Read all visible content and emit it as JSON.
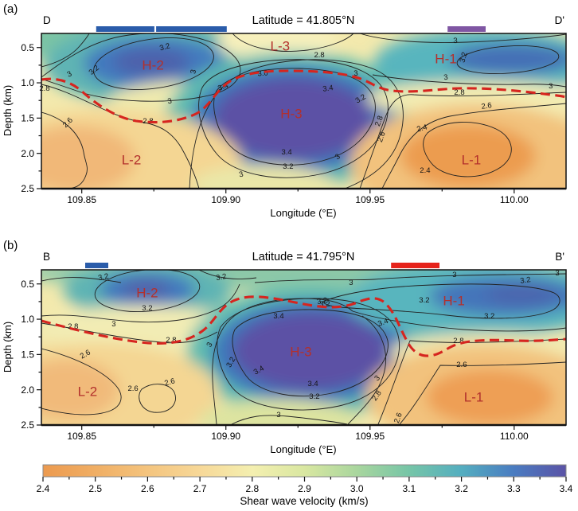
{
  "chart_data": {
    "type": "heatmap",
    "axes": {
      "xlabel": "Longitude (°E)",
      "ylabel": "Depth (km)",
      "x_ticks": [
        109.85,
        109.9,
        109.95,
        110.0
      ],
      "x_tick_labels": [
        "109.85",
        "109.90",
        "109.95",
        "110.00"
      ],
      "x_minor_ticks": [
        109.875,
        109.925,
        109.975
      ],
      "y_ticks": [
        0.5,
        1.0,
        1.5,
        2.0,
        2.5
      ],
      "y_tick_labels": [
        "0.5",
        "1.0",
        "1.5",
        "2.0",
        "2.5"
      ],
      "y_minor_ticks": [
        0.75,
        1.25,
        1.75,
        2.25
      ],
      "lon_range": [
        109.836,
        110.018
      ],
      "depth_range": [
        0.3,
        2.5
      ]
    },
    "contour_levels": [
      2.4,
      2.6,
      2.8,
      3.0,
      3.2,
      3.4
    ],
    "colors": {
      "dashed_line": "#D6251F",
      "anomaly_label": "#B3302C",
      "section_bar_blue": "#2A5CAA",
      "section_bar_purple": "#7F56A3",
      "section_bar_red": "#E6231B"
    },
    "panels": [
      {
        "tag": "(a)",
        "corner_left": "D",
        "corner_right": "D'",
        "title": "Latitude = 41.805°N",
        "latitude": 41.805,
        "top_bars": [
          {
            "color": "#2A5CAA",
            "lon_start": 109.855,
            "lon_end": 109.8752
          },
          {
            "color": "#2A5CAA",
            "lon_start": 109.8758,
            "lon_end": 109.9003
          },
          {
            "color": "#7F56A3",
            "lon_start": 109.9769,
            "lon_end": 109.9901
          }
        ],
        "anomaly_labels": [
          {
            "text": "H-2",
            "lon": 109.8747,
            "depth": 0.751
          },
          {
            "text": "L-3",
            "lon": 109.9188,
            "depth": 0.48
          },
          {
            "text": "H-1",
            "lon": 109.9763,
            "depth": 0.661
          },
          {
            "text": "H-3",
            "lon": 109.9227,
            "depth": 1.439
          },
          {
            "text": "L-2",
            "lon": 109.8672,
            "depth": 2.094
          },
          {
            "text": "L-1",
            "lon": 109.9851,
            "depth": 2.094
          }
        ],
        "contour_labels": [
          [
            109.8788,
            0.492,
            "3.2",
            -15
          ],
          [
            109.8542,
            0.819,
            "3.2",
            -40
          ],
          [
            109.8457,
            0.875,
            "3",
            -25
          ],
          [
            109.8371,
            1.078,
            "2.8",
            0
          ],
          [
            109.8887,
            0.841,
            "3",
            -78
          ],
          [
            109.8805,
            1.259,
            "3",
            -10
          ],
          [
            109.8451,
            1.563,
            "2.6",
            -45
          ],
          [
            109.873,
            1.541,
            "2.8",
            0
          ],
          [
            109.899,
            1.056,
            "3.4",
            -20
          ],
          [
            109.9354,
            1.078,
            "3.4",
            -8
          ],
          [
            109.9467,
            1.225,
            "3.2",
            -30
          ],
          [
            109.9211,
            1.981,
            "3.4",
            0
          ],
          [
            109.9216,
            2.184,
            "3.2",
            0
          ],
          [
            109.9387,
            2.048,
            "3",
            -35
          ],
          [
            109.9053,
            2.297,
            "3",
            -12
          ],
          [
            109.9531,
            1.541,
            "2.8",
            -70
          ],
          [
            109.9539,
            1.767,
            "2.6",
            -70
          ],
          [
            109.9128,
            0.864,
            "3.0",
            -5
          ],
          [
            109.9451,
            0.864,
            "3",
            -5
          ],
          [
            109.9324,
            0.605,
            "2.8",
            0
          ],
          [
            109.9763,
            0.92,
            "3",
            -8
          ],
          [
            109.9796,
            0.402,
            "3",
            -3
          ],
          [
            109.9824,
            0.638,
            "3.2",
            -75
          ],
          [
            110.0127,
            1.045,
            "3",
            0
          ],
          [
            109.9904,
            1.327,
            "2.6",
            -8
          ],
          [
            109.981,
            1.135,
            "2.8",
            0
          ],
          [
            109.968,
            1.642,
            "2.4",
            -15
          ],
          [
            109.9691,
            2.24,
            "2.4",
            0
          ]
        ]
      },
      {
        "tag": "(b)",
        "corner_left": "B",
        "corner_right": "B'",
        "title": "Latitude = 41.795°N",
        "latitude": 41.795,
        "top_bars": [
          {
            "color": "#2A5CAA",
            "lon_start": 109.8512,
            "lon_end": 109.8592
          },
          {
            "color": "#E6231B",
            "lon_start": 109.9573,
            "lon_end": 109.9741
          }
        ],
        "anomaly_labels": [
          {
            "text": "H-2",
            "lon": 109.8727,
            "depth": 0.627
          },
          {
            "text": "H-1",
            "lon": 109.9791,
            "depth": 0.74
          },
          {
            "text": "H-3",
            "lon": 109.926,
            "depth": 1.462
          },
          {
            "text": "L-2",
            "lon": 109.852,
            "depth": 2.026
          },
          {
            "text": "L-1",
            "lon": 109.986,
            "depth": 2.105
          }
        ],
        "contour_labels": [
          [
            109.8575,
            0.402,
            "3.2",
            -12
          ],
          [
            109.8727,
            0.842,
            "3.2",
            0
          ],
          [
            109.8611,
            1.067,
            "3",
            0
          ],
          [
            109.847,
            1.101,
            "2.8",
            0
          ],
          [
            109.881,
            1.293,
            "2.8",
            0
          ],
          [
            109.8984,
            0.402,
            "3.2",
            -10
          ],
          [
            109.9793,
            0.368,
            "3",
            0
          ],
          [
            110.0039,
            0.447,
            "3.2",
            -8
          ],
          [
            110.015,
            0.345,
            "3",
            0
          ],
          [
            109.9434,
            0.48,
            "3",
            0
          ],
          [
            109.9334,
            0.74,
            "3.2",
            -10
          ],
          [
            109.9688,
            0.729,
            "3.2",
            0
          ],
          [
            109.9914,
            0.954,
            "3.2",
            0
          ],
          [
            109.9545,
            1.044,
            "3.4",
            -20
          ],
          [
            109.9183,
            0.954,
            "3.4",
            0
          ],
          [
            109.9343,
            0.785,
            "3.2",
            0
          ],
          [
            109.8943,
            1.361,
            "3",
            -60
          ],
          [
            109.9017,
            1.609,
            "3.2",
            -60
          ],
          [
            109.9114,
            1.721,
            "3.4",
            -30
          ],
          [
            109.9302,
            1.913,
            "3.4",
            0
          ],
          [
            109.9307,
            2.094,
            "3.2",
            0
          ],
          [
            109.9183,
            2.353,
            "3",
            0
          ],
          [
            109.9525,
            1.834,
            "3",
            -45
          ],
          [
            109.9523,
            2.083,
            "2.8",
            -55
          ],
          [
            109.9597,
            2.398,
            "2.6",
            -70
          ],
          [
            109.8512,
            1.496,
            "2.6",
            -30
          ],
          [
            109.8678,
            1.981,
            "2.6",
            0
          ],
          [
            109.8805,
            1.891,
            "2.6",
            -15
          ],
          [
            109.9807,
            1.304,
            "2.8",
            0
          ],
          [
            109.9818,
            1.642,
            "2.6",
            0
          ]
        ]
      }
    ],
    "colorbar": {
      "label": "Shear wave velocity (km/s)",
      "min": 2.4,
      "max": 3.4,
      "ticks": [
        "2.4",
        "2.5",
        "2.6",
        "2.7",
        "2.8",
        "2.9",
        "3.0",
        "3.1",
        "3.2",
        "3.3",
        "3.4"
      ],
      "stops": [
        {
          "v": 2.4,
          "c": "#EC9A4F"
        },
        {
          "v": 2.5,
          "c": "#F0AE64"
        },
        {
          "v": 2.6,
          "c": "#F4C47E"
        },
        {
          "v": 2.7,
          "c": "#F7D898"
        },
        {
          "v": 2.8,
          "c": "#F4EFB0"
        },
        {
          "v": 2.9,
          "c": "#D9E7A1"
        },
        {
          "v": 3.0,
          "c": "#A9D69E"
        },
        {
          "v": 3.1,
          "c": "#76C5A7"
        },
        {
          "v": 3.2,
          "c": "#54AEC0"
        },
        {
          "v": 3.3,
          "c": "#4A7CC1"
        },
        {
          "v": 3.4,
          "c": "#5B53A6"
        }
      ]
    }
  }
}
